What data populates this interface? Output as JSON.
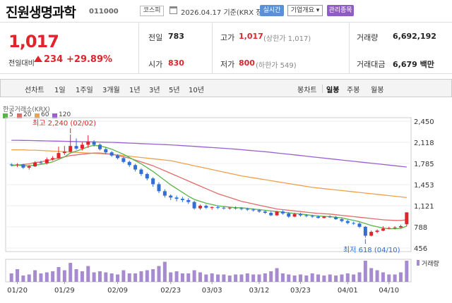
{
  "header": {
    "name": "진원생명과학",
    "code": "011000",
    "market": "코스피",
    "date": "2026.04.17",
    "basis": "기준(KRX 장마감)",
    "realtime": "실시간",
    "company_info": "기업개요",
    "management": "관리종목"
  },
  "quote": {
    "price": "1,017",
    "diff_label": "전일대비",
    "diff": "234",
    "pct": "+29.89%",
    "prev_label": "전일",
    "prev": "783",
    "high_label": "고가",
    "high": "1,017",
    "upper_limit": "(상한가 1,017)",
    "volume_label": "거래량",
    "volume": "6,692,192",
    "open_label": "시가",
    "open": "830",
    "low_label": "저가",
    "low": "800",
    "lower_limit": "(하한가 549)",
    "amount_label": "거래대금",
    "amount": "6,679 백만"
  },
  "tabs": {
    "line": "선차트",
    "d1": "1일",
    "w1": "1주일",
    "m3": "3개월",
    "y1": "1년",
    "y3": "3년",
    "y5": "5년",
    "y10": "10년",
    "candle": "봉차트",
    "daily": "일봉",
    "weekly": "주봉",
    "monthly": "월봉"
  },
  "chart_labels": {
    "source": "한국거래소(KRX)",
    "ma": [
      "5",
      "20",
      "60",
      "120"
    ],
    "ma_colors": [
      "#5ab34a",
      "#e26b6b",
      "#f0a04b",
      "#9a5fd0"
    ],
    "high_note": "최고 2,240 (02/02)",
    "low_note": "최저 618 (04/10)",
    "volume_label": "거래량"
  },
  "chart_data": {
    "type": "candlestick",
    "y_ticks": [
      "2,450",
      "2,118",
      "1,785",
      "1,453",
      "1,121",
      "788",
      "456"
    ],
    "y_tick_values": [
      2450,
      2118,
      1785,
      1453,
      1121,
      788,
      456
    ],
    "x_ticks": [
      "01/20",
      "01/29",
      "02/09",
      "02/23",
      "03/03",
      "03/12",
      "03/23",
      "04/01",
      "04/10"
    ],
    "ohlc": [
      [
        1770,
        1790,
        1740,
        1760
      ],
      [
        1760,
        1790,
        1730,
        1770
      ],
      [
        1770,
        1780,
        1700,
        1720
      ],
      [
        1720,
        1760,
        1690,
        1740
      ],
      [
        1740,
        1820,
        1730,
        1800
      ],
      [
        1800,
        1830,
        1780,
        1790
      ],
      [
        1790,
        1880,
        1770,
        1850
      ],
      [
        1850,
        1900,
        1830,
        1870
      ],
      [
        1870,
        2050,
        1860,
        1950
      ],
      [
        1950,
        2060,
        1920,
        1970
      ],
      [
        1970,
        2240,
        1960,
        2060
      ],
      [
        2060,
        2180,
        2000,
        2020
      ],
      [
        2020,
        2120,
        1990,
        2080
      ],
      [
        2080,
        2230,
        2030,
        2130
      ],
      [
        2130,
        2150,
        2050,
        2080
      ],
      [
        2080,
        2100,
        1990,
        2010
      ],
      [
        2010,
        2040,
        1930,
        1960
      ],
      [
        1960,
        1980,
        1890,
        1910
      ],
      [
        1910,
        1930,
        1850,
        1870
      ],
      [
        1870,
        1890,
        1790,
        1810
      ],
      [
        1810,
        1830,
        1730,
        1760
      ],
      [
        1760,
        1780,
        1660,
        1690
      ],
      [
        1690,
        1710,
        1590,
        1620
      ],
      [
        1620,
        1640,
        1520,
        1550
      ],
      [
        1550,
        1570,
        1420,
        1460
      ],
      [
        1460,
        1490,
        1320,
        1350
      ],
      [
        1350,
        1380,
        1250,
        1280
      ],
      [
        1280,
        1300,
        1210,
        1250
      ],
      [
        1250,
        1280,
        1190,
        1230
      ],
      [
        1230,
        1260,
        1180,
        1210
      ],
      [
        1210,
        1240,
        1150,
        1180
      ],
      [
        1180,
        1200,
        1060,
        1080
      ],
      [
        1080,
        1140,
        1060,
        1120
      ],
      [
        1120,
        1140,
        1070,
        1090
      ],
      [
        1090,
        1110,
        1060,
        1100
      ],
      [
        1100,
        1120,
        1070,
        1090
      ],
      [
        1090,
        1110,
        1060,
        1080
      ],
      [
        1080,
        1100,
        1060,
        1090
      ],
      [
        1090,
        1110,
        1060,
        1080
      ],
      [
        1080,
        1100,
        1050,
        1070
      ],
      [
        1070,
        1090,
        1040,
        1060
      ],
      [
        1060,
        1080,
        1030,
        1050
      ],
      [
        1050,
        1070,
        1010,
        1030
      ],
      [
        1030,
        1050,
        990,
        1010
      ],
      [
        1010,
        1030,
        960,
        970
      ],
      [
        970,
        1040,
        960,
        1030
      ],
      [
        1030,
        1050,
        980,
        1000
      ],
      [
        1000,
        1020,
        930,
        950
      ],
      [
        950,
        1010,
        940,
        990
      ],
      [
        990,
        1010,
        950,
        970
      ],
      [
        970,
        990,
        940,
        960
      ],
      [
        960,
        980,
        930,
        950
      ],
      [
        950,
        970,
        920,
        930
      ],
      [
        930,
        960,
        920,
        950
      ],
      [
        950,
        970,
        930,
        940
      ],
      [
        940,
        960,
        900,
        910
      ],
      [
        910,
        930,
        860,
        880
      ],
      [
        880,
        900,
        830,
        850
      ],
      [
        850,
        870,
        820,
        840
      ],
      [
        840,
        860,
        770,
        790
      ],
      [
        790,
        800,
        618,
        650
      ],
      [
        650,
        730,
        640,
        710
      ],
      [
        710,
        750,
        690,
        730
      ],
      [
        730,
        800,
        720,
        760
      ],
      [
        760,
        790,
        750,
        770
      ],
      [
        770,
        800,
        750,
        780
      ],
      [
        780,
        820,
        770,
        800
      ],
      [
        830,
        1017,
        800,
        1017
      ]
    ],
    "ma_lines": {
      "ma5": [
        1760,
        1760,
        1750,
        1750,
        1760,
        1770,
        1790,
        1810,
        1850,
        1890,
        1950,
        1980,
        2010,
        2050,
        2070,
        2060,
        2040,
        2010,
        1970,
        1930,
        1880,
        1830,
        1780,
        1720,
        1660,
        1590,
        1520,
        1450,
        1390,
        1330,
        1270,
        1220,
        1190,
        1160,
        1140,
        1120,
        1110,
        1100,
        1090,
        1090,
        1080,
        1070,
        1060,
        1050,
        1040,
        1030,
        1020,
        1010,
        1000,
        990,
        980,
        970,
        960,
        955,
        950,
        940,
        930,
        910,
        890,
        870,
        840,
        810,
        790,
        770,
        760,
        760,
        765,
        800
      ],
      "ma20": [
        1750,
        1760,
        1770,
        1780,
        1800,
        1810,
        1830,
        1850,
        1870,
        1890,
        1910,
        1920,
        1930,
        1940,
        1950,
        1950,
        1940,
        1930,
        1910,
        1890,
        1870,
        1840,
        1810,
        1780,
        1750,
        1710,
        1670,
        1630,
        1590,
        1550,
        1510,
        1470,
        1430,
        1390,
        1350,
        1310,
        1280,
        1250,
        1220,
        1190,
        1170,
        1150,
        1130,
        1110,
        1090,
        1070,
        1060,
        1050,
        1040,
        1030,
        1020,
        1010,
        1000,
        995,
        990,
        980,
        970,
        960,
        950,
        940,
        930,
        920,
        910,
        900,
        895,
        890,
        890,
        900
      ],
      "ma60": [
        2000,
        2000,
        2000,
        1995,
        1995,
        1990,
        1985,
        1980,
        1975,
        1970,
        1965,
        1960,
        1955,
        1950,
        1945,
        1940,
        1935,
        1930,
        1920,
        1910,
        1900,
        1890,
        1880,
        1870,
        1860,
        1850,
        1840,
        1830,
        1810,
        1790,
        1770,
        1750,
        1730,
        1710,
        1690,
        1670,
        1650,
        1630,
        1610,
        1590,
        1575,
        1560,
        1545,
        1530,
        1515,
        1500,
        1485,
        1470,
        1455,
        1440,
        1425,
        1410,
        1400,
        1390,
        1380,
        1370,
        1360,
        1350,
        1340,
        1330,
        1320,
        1310,
        1300,
        1290,
        1280,
        1270,
        1260,
        1250
      ],
      "ma120": [
        2150,
        2150,
        2148,
        2146,
        2144,
        2142,
        2140,
        2138,
        2136,
        2134,
        2132,
        2130,
        2128,
        2126,
        2124,
        2122,
        2120,
        2118,
        2114,
        2110,
        2106,
        2102,
        2098,
        2094,
        2090,
        2086,
        2082,
        2078,
        2072,
        2066,
        2060,
        2054,
        2048,
        2042,
        2036,
        2030,
        2024,
        2018,
        2010,
        2002,
        1994,
        1986,
        1978,
        1970,
        1960,
        1950,
        1940,
        1930,
        1920,
        1910,
        1900,
        1890,
        1880,
        1870,
        1860,
        1850,
        1840,
        1830,
        1820,
        1810,
        1800,
        1790,
        1780,
        1770,
        1760,
        1750,
        1740,
        1730
      ]
    },
    "volumes": [
      40,
      60,
      30,
      35,
      55,
      40,
      45,
      50,
      70,
      55,
      90,
      60,
      50,
      75,
      45,
      50,
      45,
      40,
      35,
      55,
      40,
      40,
      50,
      55,
      60,
      75,
      95,
      45,
      50,
      40,
      40,
      55,
      45,
      35,
      40,
      35,
      35,
      30,
      35,
      35,
      40,
      35,
      35,
      40,
      50,
      65,
      40,
      35,
      30,
      35,
      30,
      40,
      35,
      30,
      35,
      30,
      35,
      40,
      35,
      45,
      100,
      65,
      55,
      45,
      35,
      35,
      45,
      100
    ]
  }
}
